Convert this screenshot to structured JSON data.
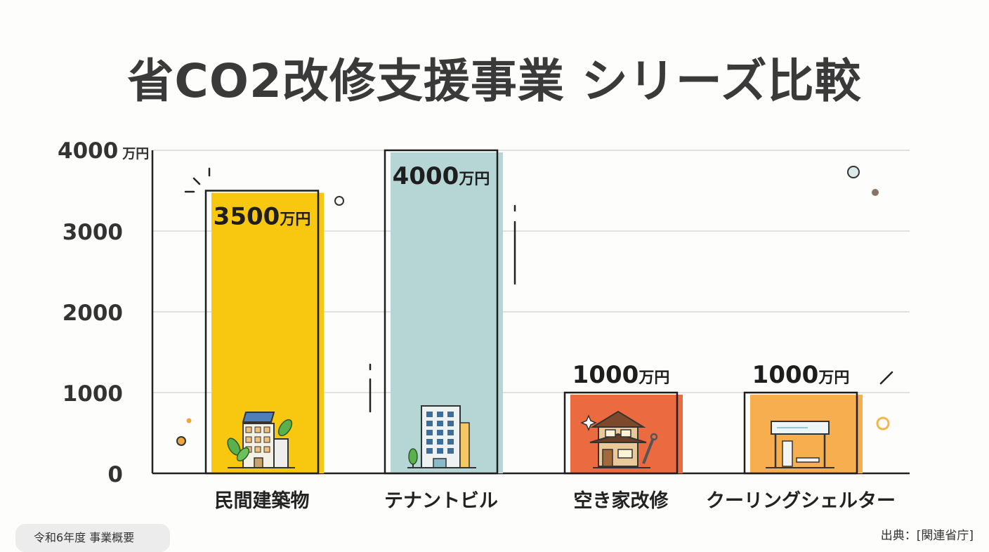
{
  "title": "省CO2改修支援事業 シリーズ比較",
  "footer_note": "令和6年度 事業概要",
  "source": "出典：[関連省庁]",
  "colors": {
    "grid": "#d8d8d8",
    "axis": "#222222",
    "bars": [
      "#f7c80f",
      "#b6d6d6",
      "#ec6a3f",
      "#f6ae4e"
    ]
  },
  "icons": [
    "building-with-solar-panels-icon",
    "office-building-icon",
    "traditional-house-with-wrench-icon",
    "cooling-shelter-bus-stop-icon"
  ],
  "chart_data": {
    "type": "bar",
    "title": "省CO2改修支援事業 シリーズ比較",
    "categories": [
      "民間建築物",
      "テナントビル",
      "空き家改修",
      "クーリングシェルター"
    ],
    "values": [
      3500,
      4000,
      1000,
      1000
    ],
    "value_labels": [
      "3500万円",
      "4000万円",
      "1000万円",
      "1000万円"
    ],
    "y_ticks": [
      "0",
      "1000",
      "2000",
      "3000",
      "4000 万円"
    ],
    "ylim": [
      0,
      4000
    ],
    "grid": true,
    "legend": "none"
  }
}
